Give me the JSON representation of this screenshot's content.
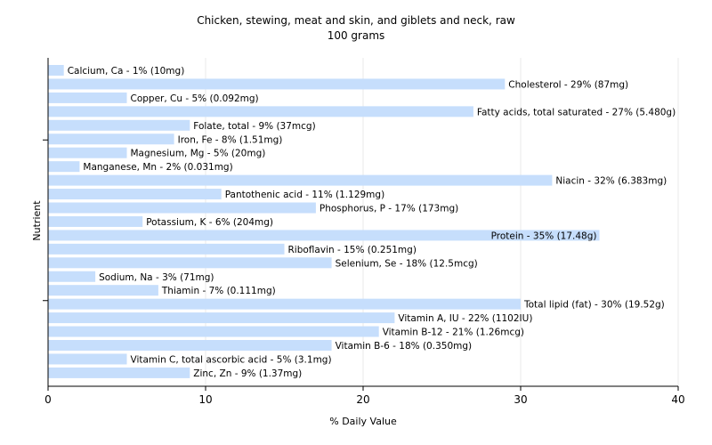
{
  "chart_data": {
    "type": "bar",
    "orientation": "horizontal",
    "title": "Chicken, stewing, meat and skin, and giblets and neck, raw",
    "subtitle": "100 grams",
    "xlabel": "% Daily Value",
    "ylabel": "Nutrient",
    "xlim": [
      0,
      40
    ],
    "xticks": [
      0,
      10,
      20,
      30,
      40
    ],
    "grid": true,
    "bar_color": "#c6defc",
    "categories": [
      "Calcium, Ca",
      "Cholesterol",
      "Copper, Cu",
      "Fatty acids, total saturated",
      "Folate, total",
      "Iron, Fe",
      "Magnesium, Mg",
      "Manganese, Mn",
      "Niacin",
      "Pantothenic acid",
      "Phosphorus, P",
      "Potassium, K",
      "Protein",
      "Riboflavin",
      "Selenium, Se",
      "Sodium, Na",
      "Thiamin",
      "Total lipid (fat)",
      "Vitamin A, IU",
      "Vitamin B-12",
      "Vitamin B-6",
      "Vitamin C, total ascorbic acid",
      "Zinc, Zn"
    ],
    "values": [
      1,
      29,
      5,
      27,
      9,
      8,
      5,
      2,
      32,
      11,
      17,
      6,
      35,
      15,
      18,
      3,
      7,
      30,
      22,
      21,
      18,
      5,
      9
    ],
    "labels": [
      "Calcium, Ca - 1% (10mg)",
      "Cholesterol - 29% (87mg)",
      "Copper, Cu - 5% (0.092mg)",
      "Fatty acids, total saturated - 27% (5.480g)",
      "Folate, total - 9% (37mcg)",
      "Iron, Fe - 8% (1.51mg)",
      "Magnesium, Mg - 5% (20mg)",
      "Manganese, Mn - 2% (0.031mg)",
      "Niacin - 32% (6.383mg)",
      "Pantothenic acid - 11% (1.129mg)",
      "Phosphorus, P - 17% (173mg)",
      "Potassium, K - 6% (204mg)",
      "Protein - 35% (17.48g)",
      "Riboflavin - 15% (0.251mg)",
      "Selenium, Se - 18% (12.5mcg)",
      "Sodium, Na - 3% (71mg)",
      "Thiamin - 7% (0.111mg)",
      "Total lipid (fat) - 30% (19.52g)",
      "Vitamin A, IU - 22% (1102IU)",
      "Vitamin B-12 - 21% (1.26mcg)",
      "Vitamin B-6 - 18% (0.350mg)",
      "Vitamin C, total ascorbic acid - 5% (3.1mg)",
      "Zinc, Zn - 9% (1.37mg)"
    ]
  }
}
